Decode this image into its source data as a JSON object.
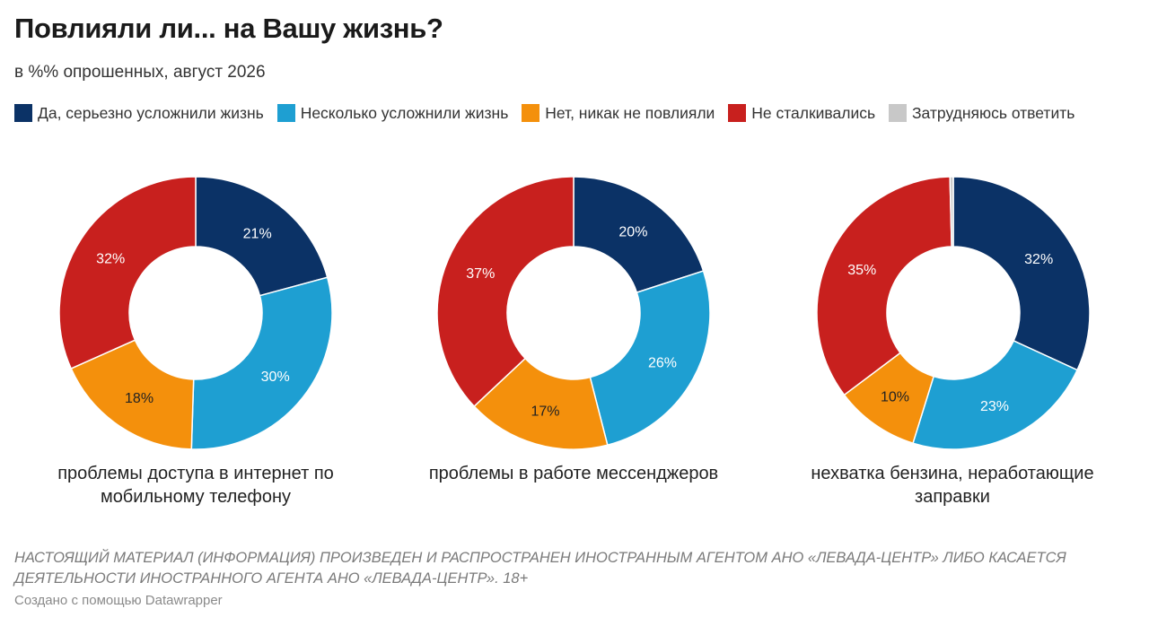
{
  "title": "Повлияли ли... на Вашу жизнь?",
  "subtitle": "в %% опрошенных, август 2026",
  "legend": [
    {
      "label": "Да, серьезно усложнили жизнь",
      "color": "#0b3266"
    },
    {
      "label": "Несколько усложнили жизнь",
      "color": "#1e9fd2"
    },
    {
      "label": "Нет, никак не повлияли",
      "color": "#f4900c"
    },
    {
      "label": "Не сталкивались",
      "color": "#c8201e"
    },
    {
      "label": "Затрудняюсь ответить",
      "color": "#c8c8c8"
    }
  ],
  "chart_data": [
    {
      "type": "pie",
      "title": "проблемы доступа в интернет по мобильному телефону",
      "categories": [
        "Да, серьезно усложнили жизнь",
        "Несколько усложнили жизнь",
        "Нет, никак не повлияли",
        "Не сталкивались",
        "Затрудняюсь ответить"
      ],
      "values": [
        21,
        30,
        18,
        32,
        0
      ],
      "labels": [
        "21%",
        "30%",
        "18%",
        "32%",
        ""
      ]
    },
    {
      "type": "pie",
      "title": "проблемы в работе мессенджеров",
      "categories": [
        "Да, серьезно усложнили жизнь",
        "Несколько усложнили жизнь",
        "Нет, никак не повлияли",
        "Не сталкивались",
        "Затрудняюсь ответить"
      ],
      "values": [
        20,
        26,
        17,
        37,
        0
      ],
      "labels": [
        "20%",
        "26%",
        "17%",
        "37%",
        ""
      ]
    },
    {
      "type": "pie",
      "title": "нехватка бензина, неработающие заправки",
      "categories": [
        "Да, серьезно усложнили жизнь",
        "Несколько усложнили жизнь",
        "Нет, никак не повлияли",
        "Не сталкивались",
        "Затрудняюсь ответить"
      ],
      "values": [
        32,
        23,
        10,
        35,
        0.4
      ],
      "labels": [
        "32%",
        "23%",
        "10%",
        "35%",
        ""
      ]
    }
  ],
  "footnote": "НАСТОЯЩИЙ МАТЕРИАЛ (ИНФОРМАЦИЯ) ПРОИЗВЕДЕН И РАСПРОСТРАНЕН ИНОСТРАННЫМ АГЕНТОМ АНО «ЛЕВАДА-ЦЕНТР» ЛИБО КАСАЕТСЯ ДЕЯТЕЛЬНОСТИ ИНОСТРАННОГО АГЕНТА АНО «ЛЕВАДА-ЦЕНТР». 18+",
  "credit": "Создано с помощью Datawrapper"
}
